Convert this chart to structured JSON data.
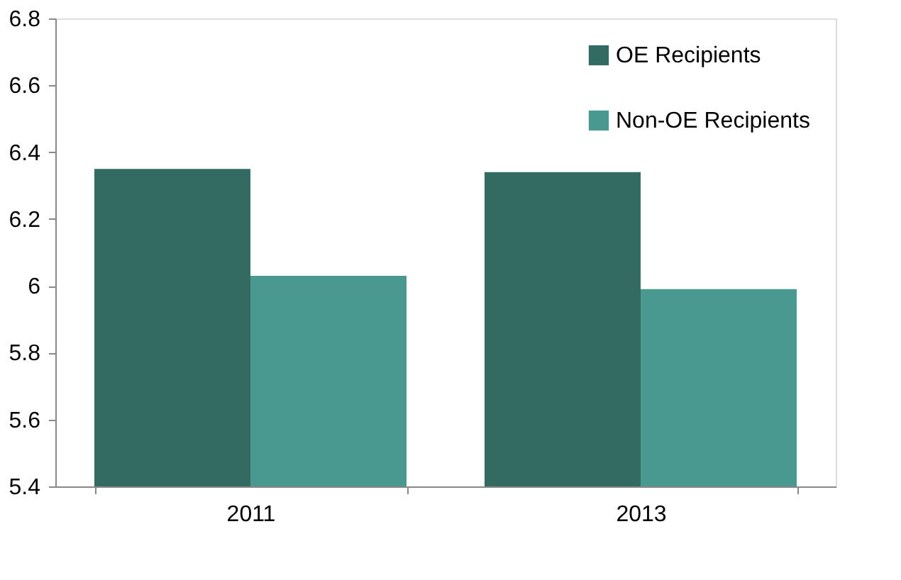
{
  "chart_data": {
    "type": "bar",
    "categories": [
      "2011",
      "2013"
    ],
    "series": [
      {
        "name": "OE Recipients",
        "color": "#336b63",
        "values": [
          6.35,
          6.34
        ]
      },
      {
        "name": "Non-OE Recipients",
        "color": "#4a9990",
        "values": [
          6.03,
          5.99
        ]
      }
    ],
    "ylim": [
      5.4,
      6.8
    ],
    "yticks": [
      5.4,
      5.6,
      5.8,
      6,
      6.2,
      6.4,
      6.6,
      6.8
    ],
    "grid": false,
    "legend": "top right"
  }
}
